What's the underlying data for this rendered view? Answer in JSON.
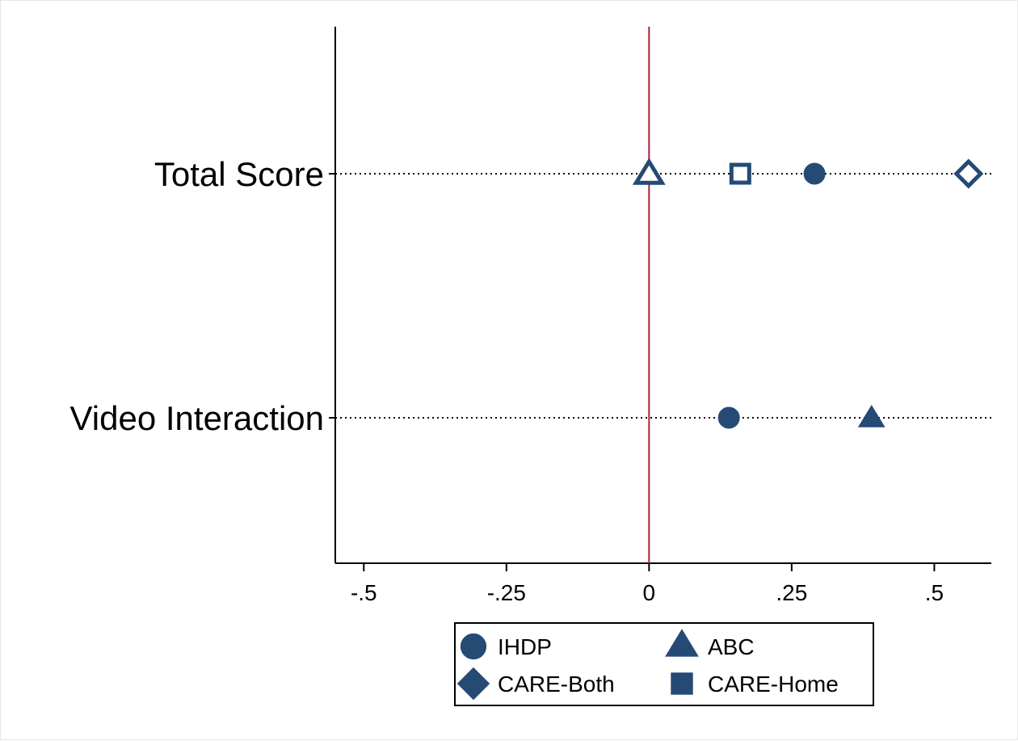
{
  "chart_data": {
    "type": "scatter",
    "title": "",
    "xlabel": "",
    "ylabel": "",
    "xlim": [
      -0.55,
      0.6
    ],
    "xticks": [
      -0.5,
      -0.25,
      0,
      0.25,
      0.5
    ],
    "xtick_labels": [
      "-.5",
      "-.25",
      "0",
      ".25",
      ".5"
    ],
    "reference_line": {
      "x": 0,
      "color": "#b0203a"
    },
    "categories": [
      "Total Score",
      "Video Interaction"
    ],
    "marker_color": "#254a74",
    "series": [
      {
        "name": "IHDP",
        "marker": "circle",
        "filled": true,
        "points": [
          {
            "category": "Total Score",
            "x": 0.29
          },
          {
            "category": "Video Interaction",
            "x": 0.14
          }
        ]
      },
      {
        "name": "ABC",
        "marker": "triangle",
        "filled": false,
        "points": [
          {
            "category": "Total Score",
            "x": 0.0
          },
          {
            "category": "Video Interaction",
            "x": 0.39
          }
        ]
      },
      {
        "name": "CARE-Both",
        "marker": "diamond",
        "filled": false,
        "points": [
          {
            "category": "Total Score",
            "x": 0.56
          }
        ]
      },
      {
        "name": "CARE-Home",
        "marker": "square",
        "filled": false,
        "points": [
          {
            "category": "Total Score",
            "x": 0.16
          }
        ]
      }
    ],
    "legend": {
      "position": "bottom",
      "entries": [
        {
          "label": "IHDP",
          "marker": "circle"
        },
        {
          "label": "ABC",
          "marker": "triangle"
        },
        {
          "label": "CARE-Both",
          "marker": "diamond"
        },
        {
          "label": "CARE-Home",
          "marker": "square"
        }
      ]
    },
    "grid": false
  }
}
